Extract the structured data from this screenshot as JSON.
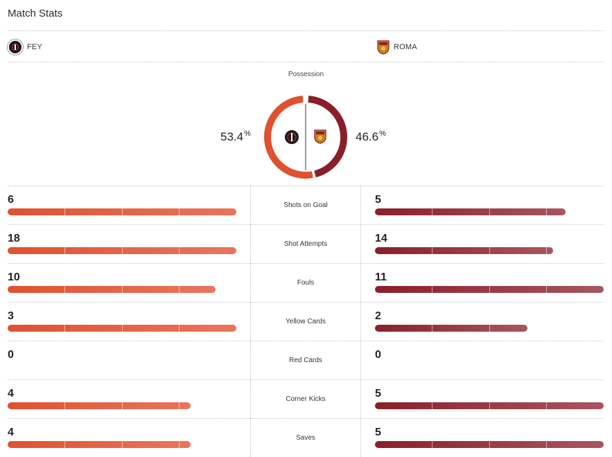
{
  "header": {
    "title": "Match Stats"
  },
  "teams": {
    "home": {
      "abbr": "FEY",
      "crest_icon": "feyenoord-crest-icon"
    },
    "away": {
      "abbr": "ROMA",
      "crest_icon": "roma-crest-icon"
    }
  },
  "possession": {
    "label": "Possession",
    "home_value": "53.4",
    "away_value": "46.6",
    "unit": "%",
    "home_fraction": 0.534,
    "away_fraction": 0.466
  },
  "colors": {
    "home": "#e0512f",
    "away": "#8a1f2a"
  },
  "stats": [
    {
      "label": "Shots on Goal",
      "home": "6",
      "away": "5",
      "home_fraction": 1.0,
      "away_fraction": 0.833
    },
    {
      "label": "Shot Attempts",
      "home": "18",
      "away": "14",
      "home_fraction": 1.0,
      "away_fraction": 0.778
    },
    {
      "label": "Fouls",
      "home": "10",
      "away": "11",
      "home_fraction": 0.909,
      "away_fraction": 1.0
    },
    {
      "label": "Yellow Cards",
      "home": "3",
      "away": "2",
      "home_fraction": 1.0,
      "away_fraction": 0.667
    },
    {
      "label": "Red Cards",
      "home": "0",
      "away": "0",
      "home_fraction": 0,
      "away_fraction": 0
    },
    {
      "label": "Corner Kicks",
      "home": "4",
      "away": "5",
      "home_fraction": 0.8,
      "away_fraction": 1.0
    },
    {
      "label": "Saves",
      "home": "4",
      "away": "5",
      "home_fraction": 0.8,
      "away_fraction": 1.0
    }
  ]
}
